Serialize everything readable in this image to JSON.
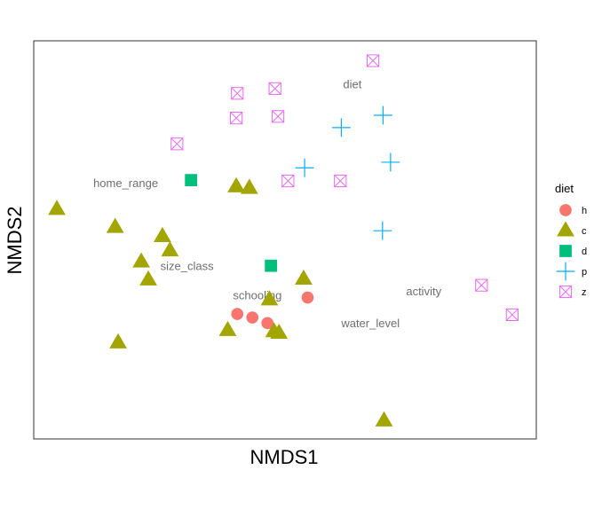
{
  "chart_data": {
    "type": "scatter",
    "xlabel": "NMDS1",
    "ylabel": "NMDS2",
    "xlim": [
      0,
      100
    ],
    "ylim": [
      0,
      100
    ],
    "grid": false,
    "legend": {
      "title": "diet",
      "placement": "right"
    },
    "series": [
      {
        "name": "h",
        "shape": "circle",
        "color": "#F8766D",
        "points": [
          [
            40.5,
            31.4
          ],
          [
            43.5,
            30.5
          ],
          [
            46.5,
            29.1
          ],
          [
            54.5,
            35.5
          ]
        ]
      },
      {
        "name": "c",
        "shape": "triangle",
        "color": "#A3A500",
        "points": [
          [
            4.6,
            57.7
          ],
          [
            16.2,
            53.2
          ],
          [
            25.6,
            50.9
          ],
          [
            21.4,
            44.5
          ],
          [
            27.1,
            47.3
          ],
          [
            22.8,
            40.0
          ],
          [
            40.3,
            63.4
          ],
          [
            42.9,
            63.0
          ],
          [
            53.7,
            40.2
          ],
          [
            46.9,
            35.0
          ],
          [
            38.6,
            27.3
          ],
          [
            47.8,
            27.0
          ],
          [
            48.8,
            26.6
          ],
          [
            16.8,
            24.2
          ],
          [
            69.7,
            4.6
          ]
        ]
      },
      {
        "name": "d",
        "shape": "square",
        "color": "#00BF7D",
        "points": [
          [
            31.3,
            65.0
          ],
          [
            47.2,
            43.5
          ]
        ]
      },
      {
        "name": "p",
        "shape": "plus",
        "color": "#00B0F6",
        "points": [
          [
            69.5,
            81.3
          ],
          [
            61.2,
            78.2
          ],
          [
            53.9,
            68.1
          ],
          [
            71.0,
            69.5
          ],
          [
            69.4,
            52.3
          ]
        ]
      },
      {
        "name": "z",
        "shape": "square-x",
        "color": "#E76BF3",
        "points": [
          [
            67.5,
            95.0
          ],
          [
            48.0,
            88.0
          ],
          [
            40.5,
            86.8
          ],
          [
            40.3,
            80.6
          ],
          [
            48.6,
            81.0
          ],
          [
            28.5,
            74.1
          ],
          [
            50.6,
            64.8
          ],
          [
            61.0,
            64.8
          ],
          [
            89.1,
            38.6
          ],
          [
            95.2,
            31.2
          ]
        ]
      }
    ],
    "variable_labels": [
      {
        "text": "diet",
        "x": 63.4,
        "y": 89.0
      },
      {
        "text": "home_range",
        "x": 18.3,
        "y": 64.1
      },
      {
        "text": "size_class",
        "x": 30.5,
        "y": 43.3
      },
      {
        "text": "schooling",
        "x": 44.5,
        "y": 36.0
      },
      {
        "text": "activity",
        "x": 77.6,
        "y": 37.0
      },
      {
        "text": "water_level",
        "x": 67.0,
        "y": 29.0
      }
    ]
  }
}
